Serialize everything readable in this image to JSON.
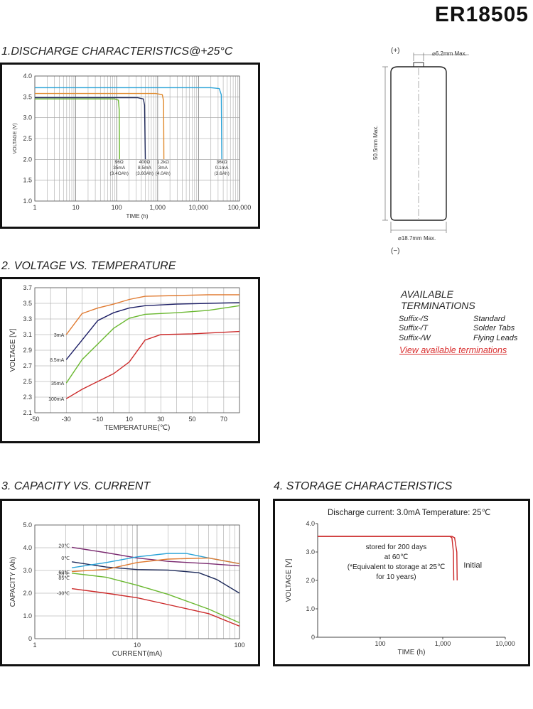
{
  "header": {
    "model": "ER18505"
  },
  "battery_drawing": {
    "plus_label": "(+)",
    "minus_label": "(−)",
    "top_dim": "⌀6.2mm Max.",
    "bottom_dim": "⌀18.7mm Max.",
    "height_dim": "50.5mm Max."
  },
  "terminations": {
    "title_line1": "AVAILABLE",
    "title_line2": "TERMINATIONS",
    "rows": [
      {
        "suffix": "Suffix-/S",
        "name": "Standard"
      },
      {
        "suffix": "Suffix-/T",
        "name": "Solder Tabs"
      },
      {
        "suffix": "Suffix-/W",
        "name": "Flying Leads"
      }
    ],
    "link_label": "View available terminations"
  },
  "chart_data": [
    {
      "id": "discharge",
      "section_title": "1.DISCHARGE CHARACTERISTICS@+25°C",
      "type": "line",
      "xscale": "log",
      "xlabel": "TIME (h)",
      "ylabel": "VOLTAGE (V)",
      "xlim": [
        1,
        100000
      ],
      "ylim": [
        1.0,
        4.0
      ],
      "xticks": [
        1,
        10,
        100,
        1000,
        10000,
        100000
      ],
      "xtick_labels": [
        "1",
        "10",
        "100",
        "1,000",
        "10,000",
        "100,000"
      ],
      "yticks": [
        1.0,
        1.5,
        2.0,
        2.5,
        3.0,
        3.5,
        4.0
      ],
      "ytick_labels": [
        "1.0",
        "1.5",
        "2.0",
        "2.5",
        "3.0",
        "3.5",
        "4.0"
      ],
      "grid": true,
      "series": [
        {
          "color": "#2aa3d8",
          "points": [
            [
              1,
              3.72
            ],
            [
              20000,
              3.72
            ],
            [
              32000,
              3.7
            ],
            [
              36000,
              3.55
            ],
            [
              37000,
              2.0
            ]
          ]
        },
        {
          "color": "#e08a2c",
          "points": [
            [
              1,
              3.58
            ],
            [
              900,
              3.58
            ],
            [
              1300,
              3.55
            ],
            [
              1400,
              3.4
            ],
            [
              1420,
              2.0
            ]
          ]
        },
        {
          "color": "#202a5a",
          "points": [
            [
              1,
              3.48
            ],
            [
              320,
              3.48
            ],
            [
              450,
              3.45
            ],
            [
              480,
              3.3
            ],
            [
              500,
              2.0
            ]
          ]
        },
        {
          "color": "#6ab830",
          "points": [
            [
              1,
              3.45
            ],
            [
              90,
              3.45
            ],
            [
              110,
              3.42
            ],
            [
              115,
              3.2
            ],
            [
              118,
              2.0
            ]
          ]
        }
      ],
      "annotations": [
        {
          "x": 115,
          "y": 1.9,
          "lines": [
            "96Ω",
            "35mA",
            "(3.4OAh)"
          ]
        },
        {
          "x": 480,
          "y": 1.9,
          "lines": [
            "400Ω",
            "8.5mA",
            "(3.60Ah)"
          ]
        },
        {
          "x": 1350,
          "y": 1.9,
          "lines": [
            "1.2kΩ",
            "3mA",
            "(4.0Ah)"
          ]
        },
        {
          "x": 37000,
          "y": 1.9,
          "lines": [
            "36kΩ",
            "0.1mA",
            "(3.6Ah)"
          ]
        }
      ]
    },
    {
      "id": "voltage_temp",
      "section_title": "2. VOLTAGE VS. TEMPERATURE",
      "type": "line",
      "xscale": "linear",
      "xlabel": "TEMPERATURE(℃)",
      "ylabel": "VOLTAGE [V]",
      "xlim": [
        -50,
        80
      ],
      "ylim": [
        2.1,
        3.7
      ],
      "xticks": [
        -50,
        -30,
        -10,
        10,
        30,
        50,
        70
      ],
      "xtick_labels": [
        "-50",
        "-30",
        "−10",
        "10",
        "30",
        "50",
        "70"
      ],
      "yticks": [
        2.1,
        2.3,
        2.5,
        2.7,
        2.9,
        3.1,
        3.3,
        3.5,
        3.7
      ],
      "ytick_labels": [
        "2.1",
        "2.3",
        "2.5",
        "2.7",
        "2.9",
        "3.1",
        "3.3",
        "3.5",
        "3.7"
      ],
      "grid": true,
      "series": [
        {
          "name": "3mA",
          "color": "#e07a30",
          "points": [
            [
              -30,
              3.1
            ],
            [
              -20,
              3.37
            ],
            [
              -10,
              3.44
            ],
            [
              0,
              3.49
            ],
            [
              10,
              3.55
            ],
            [
              20,
              3.59
            ],
            [
              40,
              3.6
            ],
            [
              60,
              3.61
            ],
            [
              80,
              3.61
            ]
          ]
        },
        {
          "name": "8.5mA",
          "color": "#1d1f66",
          "points": [
            [
              -30,
              2.78
            ],
            [
              -20,
              3.03
            ],
            [
              -10,
              3.28
            ],
            [
              0,
              3.38
            ],
            [
              10,
              3.44
            ],
            [
              20,
              3.47
            ],
            [
              40,
              3.49
            ],
            [
              60,
              3.5
            ],
            [
              80,
              3.51
            ]
          ]
        },
        {
          "name": "35mA",
          "color": "#6ab830",
          "points": [
            [
              -30,
              2.48
            ],
            [
              -20,
              2.78
            ],
            [
              -10,
              2.98
            ],
            [
              0,
              3.18
            ],
            [
              10,
              3.31
            ],
            [
              20,
              3.36
            ],
            [
              40,
              3.38
            ],
            [
              60,
              3.41
            ],
            [
              80,
              3.47
            ]
          ]
        },
        {
          "name": "100mA",
          "color": "#cc2a2a",
          "points": [
            [
              -30,
              2.28
            ],
            [
              -20,
              2.4
            ],
            [
              -10,
              2.5
            ],
            [
              0,
              2.6
            ],
            [
              10,
              2.75
            ],
            [
              20,
              3.03
            ],
            [
              30,
              3.1
            ],
            [
              50,
              3.11
            ],
            [
              80,
              3.14
            ]
          ]
        }
      ]
    },
    {
      "id": "capacity_current",
      "section_title": "3. CAPACITY VS. CURRENT",
      "type": "line",
      "xscale": "log",
      "xlabel": "CURRENT(mA)",
      "ylabel": "CAPACITY (Ah)",
      "xlim": [
        1,
        100
      ],
      "ylim": [
        0,
        5.0
      ],
      "xticks": [
        1,
        10,
        100
      ],
      "xtick_labels": [
        "1",
        "10",
        "100"
      ],
      "yticks": [
        0,
        1.0,
        2.0,
        3.0,
        4.0,
        5.0
      ],
      "ytick_labels": [
        "0",
        "1.0",
        "2.0",
        "3.0",
        "4.0",
        "5.0"
      ],
      "grid": true,
      "series": [
        {
          "name": "20℃",
          "color": "#7a2a70",
          "points": [
            [
              2.3,
              4.02
            ],
            [
              5,
              3.78
            ],
            [
              10,
              3.55
            ],
            [
              20,
              3.4
            ],
            [
              50,
              3.3
            ],
            [
              100,
              3.2
            ]
          ]
        },
        {
          "name": "0℃",
          "color": "#1d2a5a",
          "points": [
            [
              2.3,
              3.38
            ],
            [
              5,
              3.15
            ],
            [
              10,
              3.04
            ],
            [
              20,
              3.02
            ],
            [
              40,
              2.9
            ],
            [
              60,
              2.6
            ],
            [
              100,
              2.0
            ]
          ]
        },
        {
          "name": "60℃",
          "color": "#2aa3d8",
          "points": [
            [
              2.3,
              3.12
            ],
            [
              5,
              3.35
            ],
            [
              10,
              3.6
            ],
            [
              20,
              3.75
            ],
            [
              30,
              3.75
            ],
            [
              50,
              3.55
            ],
            [
              100,
              3.3
            ]
          ]
        },
        {
          "name": "-20℃",
          "color": "#e07a30",
          "points": [
            [
              2.3,
              2.95
            ],
            [
              5,
              3.05
            ],
            [
              10,
              3.35
            ],
            [
              20,
              3.5
            ],
            [
              50,
              3.55
            ],
            [
              100,
              3.3
            ]
          ]
        },
        {
          "name": "85℃",
          "color": "#6ab830",
          "points": [
            [
              2.3,
              2.88
            ],
            [
              5,
              2.7
            ],
            [
              10,
              2.35
            ],
            [
              20,
              1.95
            ],
            [
              50,
              1.3
            ],
            [
              100,
              0.7
            ]
          ]
        },
        {
          "name": "-30℃",
          "color": "#cc2a2a",
          "points": [
            [
              2.3,
              2.2
            ],
            [
              5,
              2.0
            ],
            [
              10,
              1.8
            ],
            [
              20,
              1.5
            ],
            [
              50,
              1.1
            ],
            [
              100,
              0.55
            ]
          ]
        }
      ]
    },
    {
      "id": "storage",
      "section_title": "4. STORAGE CHARACTERISTICS",
      "type": "line",
      "xscale": "log",
      "header": "Discharge current: 3.0mA  Temperature:  25℃",
      "xlabel": "TIME (h)",
      "ylabel": "VOLTAGE [V]",
      "xlim": [
        10,
        10000
      ],
      "ylim": [
        0,
        4.0
      ],
      "xticks": [
        100,
        1000,
        10000
      ],
      "xtick_labels": [
        "100",
        "1,000",
        "10,000"
      ],
      "yticks": [
        0,
        1.0,
        2.0,
        3.0,
        4.0
      ],
      "ytick_labels": [
        "0",
        "1.0",
        "2.0",
        "3.0",
        "4.0"
      ],
      "grid": false,
      "series": [
        {
          "name": "stored",
          "color": "#cc2a2a",
          "points": [
            [
              10,
              3.55
            ],
            [
              1300,
              3.55
            ],
            [
              1400,
              3.5
            ],
            [
              1480,
              3.0
            ],
            [
              1500,
              2.0
            ]
          ]
        },
        {
          "name": "Initial",
          "color": "#cc2a2a",
          "points": [
            [
              10,
              3.55
            ],
            [
              1400,
              3.55
            ],
            [
              1550,
              3.5
            ],
            [
              1680,
              3.0
            ],
            [
              1700,
              2.0
            ]
          ]
        }
      ],
      "note_lines": [
        "stored for 200 days",
        "at 60℃",
        "(*Equivalent to storage at 25℃",
        "for 10 years)"
      ],
      "initial_label": "Initial"
    }
  ]
}
